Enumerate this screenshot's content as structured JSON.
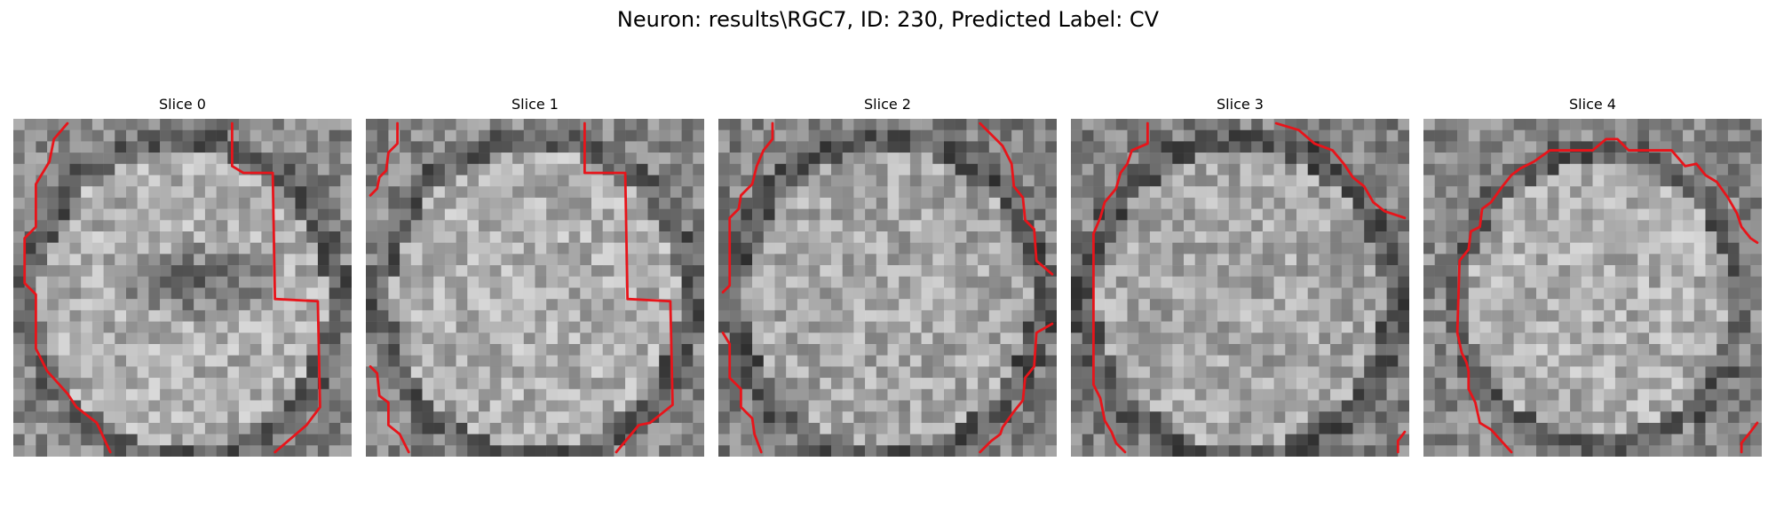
{
  "figure": {
    "title": "Neuron: results\\RGC7, ID: 230, Predicted Label: CV",
    "contour_color": "#e8141a"
  },
  "panels": [
    {
      "title": "Slice 0"
    },
    {
      "title": "Slice 1"
    },
    {
      "title": "Slice 2"
    },
    {
      "title": "Slice 3"
    },
    {
      "title": "Slice 4"
    }
  ]
}
